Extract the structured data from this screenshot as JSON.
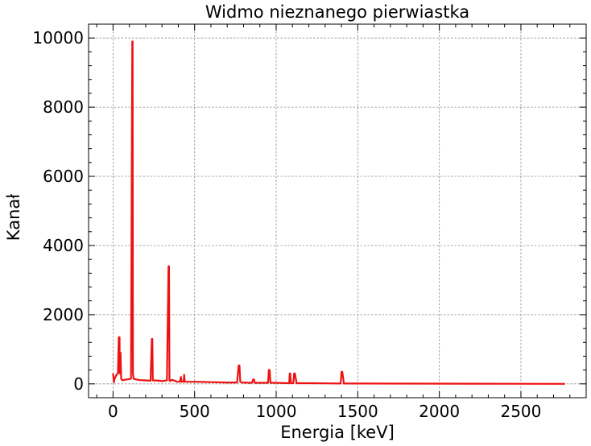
{
  "chart_data": {
    "type": "line",
    "title": "Widmo nieznanego pierwiastka",
    "xlabel": "Energia [keV]",
    "ylabel": "Kanel",
    "ylabel_display": "Kanał",
    "xlim": [
      -150,
      2900
    ],
    "ylim": [
      -400,
      10400
    ],
    "xticks": [
      0,
      500,
      1000,
      1500,
      2000,
      2500
    ],
    "yticks": [
      0,
      2000,
      4000,
      6000,
      8000,
      10000
    ],
    "xtick_labels": [
      "0",
      "500",
      "1000",
      "1500",
      "2000",
      "2500"
    ],
    "ytick_labels": [
      "0",
      "2000",
      "4000",
      "6000",
      "8000",
      "10000"
    ],
    "grid": true,
    "legend": "none",
    "series": [
      {
        "color": "#ee1111",
        "x": [
          0,
          5,
          10,
          20,
          30,
          35,
          39,
          40,
          41,
          44,
          46,
          50,
          55,
          60,
          70,
          90,
          110,
          118,
          120,
          122,
          126,
          140,
          160,
          200,
          230,
          238,
          241,
          244,
          250,
          280,
          300,
          330,
          340,
          343,
          346,
          352,
          360,
          385,
          390,
          410,
          416,
          420,
          425,
          433,
          436,
          440,
          450,
          500,
          600,
          700,
          760,
          770,
          775,
          780,
          790,
          850,
          860,
          864,
          868,
          880,
          950,
          955,
          960,
          965,
          975,
          1000,
          1080,
          1083,
          1086,
          1090,
          1105,
          1110,
          1115,
          1125,
          1200,
          1300,
          1395,
          1400,
          1405,
          1415,
          1500,
          1800,
          2200,
          2770
        ],
        "values": [
          300,
          50,
          150,
          250,
          320,
          1350,
          400,
          1350,
          300,
          300,
          900,
          150,
          120,
          100,
          120,
          130,
          150,
          9900,
          9900,
          300,
          150,
          130,
          110,
          100,
          90,
          1300,
          1300,
          100,
          100,
          90,
          80,
          100,
          3400,
          3400,
          100,
          80,
          120,
          80,
          60,
          60,
          200,
          60,
          60,
          60,
          260,
          60,
          60,
          60,
          50,
          40,
          40,
          530,
          530,
          60,
          40,
          30,
          130,
          130,
          30,
          30,
          30,
          400,
          400,
          30,
          30,
          30,
          20,
          300,
          300,
          20,
          20,
          300,
          300,
          20,
          20,
          15,
          10,
          350,
          350,
          10,
          10,
          8,
          5,
          0
        ]
      }
    ]
  }
}
